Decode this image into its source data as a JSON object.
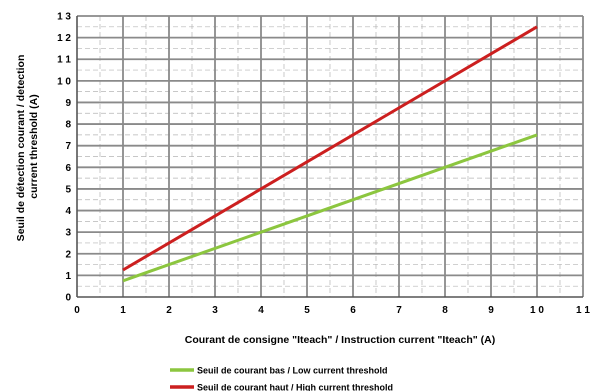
{
  "chart_data": {
    "type": "line",
    "title": "",
    "xlabel": "Courant de consigne \"Iteach\" / Instruction current \"Iteach\" (A)",
    "ylabel_lines": [
      "Seuil de détection courant / detection",
      "current threshold (A)"
    ],
    "xlim": [
      0,
      11
    ],
    "ylim": [
      0,
      13
    ],
    "x_ticks": [
      "0",
      "1",
      "2",
      "3",
      "4",
      "5",
      "6",
      "7",
      "8",
      "9",
      "1 0",
      "1 1"
    ],
    "y_ticks": [
      "0",
      "1",
      "2",
      "3",
      "4",
      "5",
      "6",
      "7",
      "8",
      "9",
      "1 0",
      "1 1",
      "1 2",
      "1 3"
    ],
    "grid": true,
    "minor_grid": "dashed",
    "legend_position": "bottom",
    "series": [
      {
        "name": "Seuil de courant bas / Low current threshold",
        "color": "#8cc63f",
        "x": [
          1,
          10
        ],
        "y": [
          0.75,
          7.5
        ]
      },
      {
        "name": "Seuil de courant haut / High current threshold",
        "color": "#cc1f1f",
        "x": [
          1,
          10
        ],
        "y": [
          1.25,
          12.5
        ]
      }
    ]
  }
}
